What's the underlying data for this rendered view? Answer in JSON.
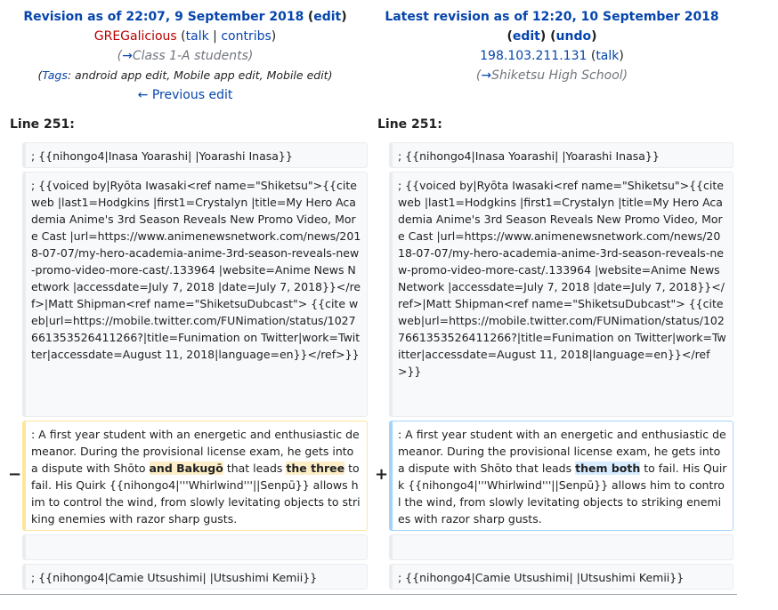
{
  "left_header": {
    "title": "Revision as of 22:07, 9 September 2018",
    "edit": "edit",
    "user": "GREGalicious",
    "talk": "talk",
    "contribs": "contribs",
    "section_arrow": "→",
    "comment": "Class 1-A students",
    "tags_label": "Tags",
    "tags": "android app edit, Mobile app edit, Mobile edit",
    "prev": "← Previous edit"
  },
  "right_header": {
    "title": "Latest revision as of 12:20, 10 September 2018",
    "edit": "edit",
    "undo": "undo",
    "ip": "198.103.211.131",
    "talk": "talk",
    "section_arrow": "→",
    "comment": "Shiketsu High School"
  },
  "line_label": "Line 251:",
  "rows": {
    "nihongo_inasa": "; {{nihongo4|Inasa Yoarashi| |Yoarashi Inasa}}",
    "voiced_by": "; {{voiced by|Ryōta Iwasaki<ref name=\"Shiketsu\">{{cite web |last1=Hodgkins |first1=Crystalyn |title=My Hero Academia Anime's 3rd Season Reveals New Promo Video, More Cast |url=https://www.animenewsnetwork.com/news/2018-07-07/my-hero-academia-anime-3rd-season-reveals-new-promo-video-more-cast/.133964 |website=Anime News Network |accessdate=July 7, 2018 |date=July 7, 2018}}</ref>|Matt Shipman<ref name=\"ShiketsuDubcast\"> {{cite web|url=https://mobile.twitter.com/FUNimation/status/1027661353526411266?|title=Funimation on Twitter|work=Twitter|accessdate=August 11, 2018|language=en}}</ref>}}",
    "nihongo_camie": "; {{nihongo4|Camie Utsushimi| |Utsushimi Kemii}}"
  },
  "del_line": {
    "marker": "−",
    "p1": ": A first year student with an energetic and enthusiastic demeanor. During the provisional license exam, he gets into a dispute with Shōto ",
    "h1": "and Bakugō",
    "p2": " that leads ",
    "h2": "the three",
    "p3": " to fail. His Quirk {{nihongo4|'''Whirlwind'''||Senpū}} allows him to control the wind, from slowly levitating objects to striking enemies with razor sharp gusts."
  },
  "add_line": {
    "marker": "+",
    "p1": ": A first year student with an energetic and enthusiastic demeanor. During the provisional license exam, he gets into a dispute with Shōto that leads ",
    "h1": "them both",
    "p2": " to fail. His Quirk {{nihongo4|'''Whirlwind'''||Senpū}} allows him to control the wind, from slowly levitating objects to striking enemies with razor sharp gusts."
  },
  "colors": {
    "link": "#0645ad",
    "user": "#ba0000",
    "deleted_border": "#ffe49c",
    "added_border": "#a3d3ff",
    "deleted_highlight": "#feeec8",
    "added_highlight": "#d8ecff"
  }
}
